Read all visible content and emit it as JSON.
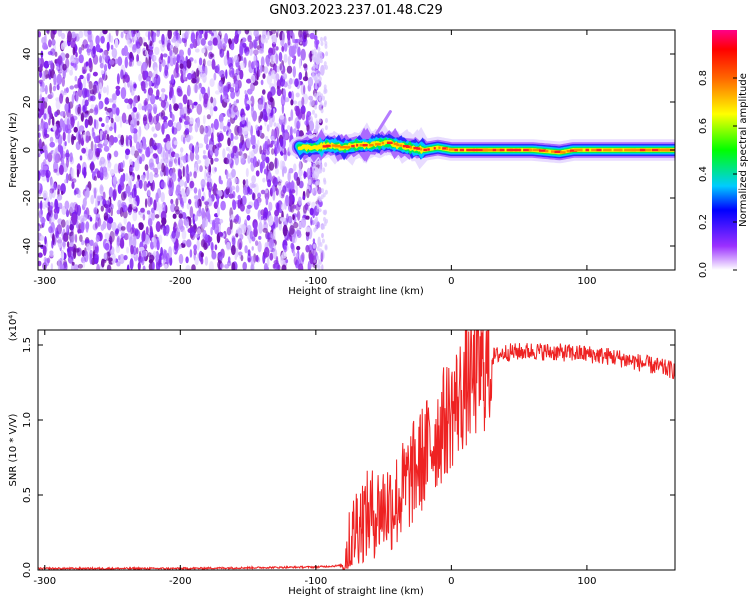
{
  "title": "GN03.2023.237.01.48.C29",
  "chart_data": [
    {
      "type": "heatmap",
      "xlabel": "Height of straight line (km)",
      "ylabel": "Frequency (Hz)",
      "xlim": [
        -305,
        165
      ],
      "ylim": [
        -50,
        50
      ],
      "xticks": [
        -300,
        -200,
        -100,
        0,
        100
      ],
      "xtick_labels": [
        "-300",
        "-200",
        "-100",
        "0",
        "100"
      ],
      "yticks": [
        -40,
        -20,
        0,
        20,
        40
      ],
      "ytick_labels": [
        "-40",
        "-20",
        "0",
        "20",
        "40"
      ],
      "noise_region": {
        "x_start": -305,
        "x_end": -95
      },
      "signal_trace": {
        "x": [
          -110,
          -100,
          -90,
          -80,
          -70,
          -60,
          -50,
          -45,
          -40,
          -30,
          -20,
          -10,
          0,
          20,
          40,
          60,
          80,
          90,
          100,
          120,
          140,
          165
        ],
        "y": [
          1,
          1,
          2,
          1,
          2,
          2,
          3,
          3,
          2,
          1,
          0,
          1,
          0,
          0,
          0,
          0,
          -1,
          0,
          0,
          0,
          0,
          0
        ]
      },
      "colorbar": {
        "label": "Normalized spectral amplitude",
        "range": [
          0,
          1
        ],
        "ticks": [
          0.0,
          0.2,
          0.4,
          0.6,
          0.8
        ],
        "tick_labels": [
          "0.0",
          "0.2",
          "0.4",
          "0.6",
          "0.8"
        ]
      }
    },
    {
      "type": "line",
      "xlabel": "Height of straight line (km)",
      "ylabel": "SNR (10 * V/V)",
      "multiplier_label": "(x10⁴)",
      "xlim": [
        -305,
        165
      ],
      "ylim": [
        0,
        1.6
      ],
      "xticks": [
        -300,
        -200,
        -100,
        0,
        100
      ],
      "xtick_labels": [
        "-300",
        "-200",
        "-100",
        "0",
        "100"
      ],
      "yticks": [
        0.0,
        0.5,
        1.0,
        1.5
      ],
      "ytick_labels": [
        "0.0",
        "0.5",
        "1.0",
        "1.5"
      ],
      "line_color": "#ee2222",
      "series": [
        {
          "x": [
            -305,
            -200,
            -100,
            -80,
            -75,
            -70,
            -60,
            -50,
            -40,
            -30,
            -20,
            -10,
            0,
            10,
            20,
            30,
            40,
            60,
            80,
            100,
            120,
            140,
            165
          ],
          "y": [
            0.01,
            0.01,
            0.02,
            0.03,
            0.15,
            0.35,
            0.4,
            0.45,
            0.5,
            0.65,
            0.8,
            0.95,
            1.1,
            1.25,
            1.35,
            1.42,
            1.45,
            1.46,
            1.45,
            1.44,
            1.42,
            1.38,
            1.33
          ]
        }
      ]
    }
  ]
}
